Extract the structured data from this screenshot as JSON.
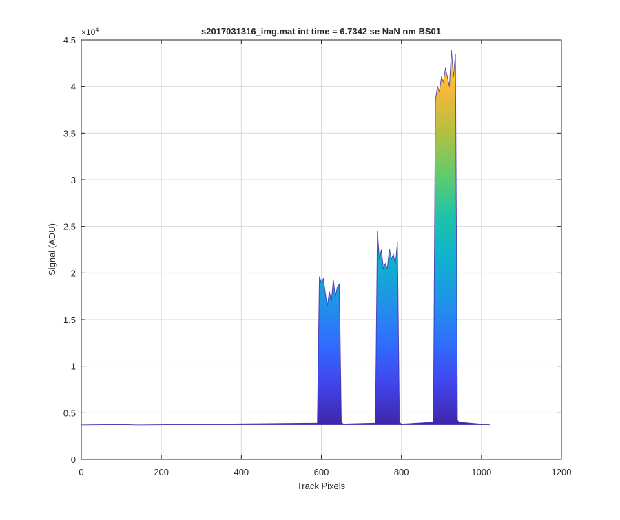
{
  "chart_data": {
    "type": "area",
    "title": "s2017031316_img.mat int time = 6.7342 se  NaN nm BS01",
    "xlabel": "Track Pixels",
    "ylabel": "Signal (ADU)",
    "y_exponent_label": "×10",
    "y_exponent_power": "4",
    "xlim": [
      0,
      1200
    ],
    "ylim": [
      0,
      45000
    ],
    "xticks": [
      0,
      200,
      400,
      600,
      800,
      1000,
      1200
    ],
    "yticks": [
      0,
      5000,
      10000,
      15000,
      20000,
      25000,
      30000,
      35000,
      40000,
      45000
    ],
    "ytick_labels": [
      "0",
      "0.5",
      "1",
      "1.5",
      "2",
      "2.5",
      "3",
      "3.5",
      "4",
      "4.5"
    ],
    "grid": true,
    "baseline": 3700,
    "colormap": "parula",
    "colors": [
      "#3e26a8",
      "#4145ec",
      "#2f6ffe",
      "#1f95e6",
      "#0fb3ce",
      "#1ec3a8",
      "#63cb6c",
      "#b3bf42",
      "#f5b83b",
      "#f9e217"
    ],
    "series": [
      {
        "x": [
          0,
          100,
          140,
          590,
          595,
          600,
          605,
          610,
          615,
          620,
          625,
          630,
          635,
          640,
          645,
          650,
          655,
          735,
          740,
          745,
          750,
          755,
          760,
          765,
          770,
          775,
          780,
          785,
          790,
          795,
          800,
          880,
          885,
          890,
          895,
          900,
          905,
          910,
          915,
          920,
          925,
          930,
          935,
          940,
          945,
          1023
        ],
        "y": [
          3700,
          3750,
          3700,
          3900,
          19600,
          19000,
          19400,
          17800,
          16500,
          18000,
          17000,
          19300,
          17500,
          18500,
          18800,
          4000,
          3800,
          3900,
          24500,
          21500,
          22500,
          20500,
          21000,
          20500,
          22600,
          21500,
          22000,
          21000,
          23300,
          4000,
          3800,
          4000,
          38500,
          40000,
          39500,
          41000,
          40500,
          42000,
          41000,
          40000,
          43900,
          41000,
          43500,
          4200,
          4000,
          3700
        ]
      }
    ]
  }
}
